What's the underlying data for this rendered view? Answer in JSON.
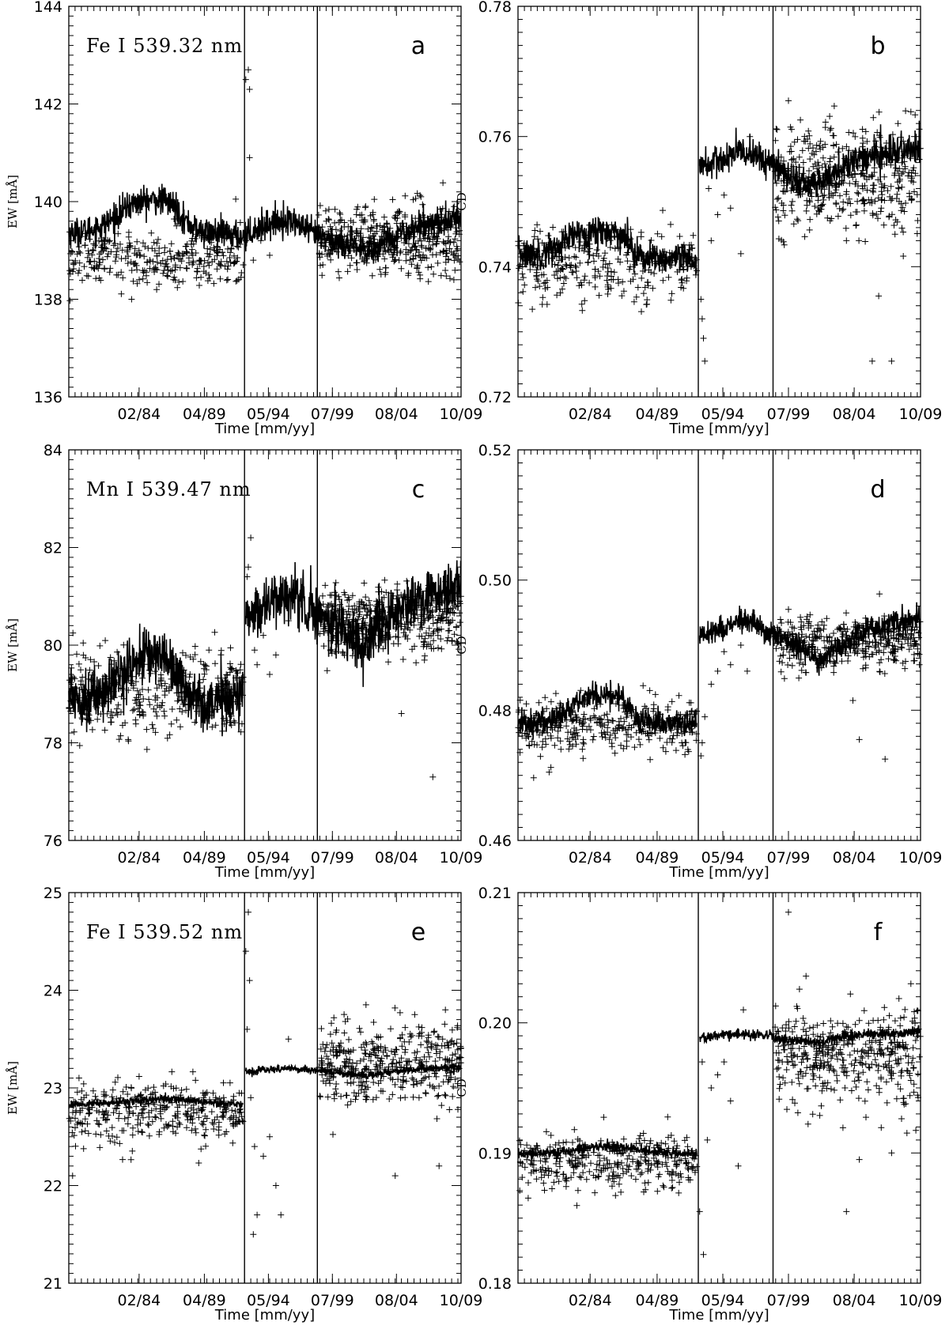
{
  "chart_data": [
    {
      "panel": "a",
      "type": "scatter",
      "title": "Fe I 539.32 nm",
      "letter": "a",
      "xlabel": "Time [mm/yy]",
      "ylabel": "EW [mÅ]",
      "xlim": [
        1978.5,
        2009.75
      ],
      "ylim": [
        136,
        144
      ],
      "x_tick_labels": [
        "02/84",
        "04/89",
        "05/94",
        "07/99",
        "08/04",
        "10/09"
      ],
      "x_ticks": [
        1984.1,
        1989.3,
        1994.4,
        1999.5,
        2004.6,
        2009.75
      ],
      "y_ticks": [
        136,
        138,
        140,
        142,
        144
      ],
      "y_tick_labels": [
        "136",
        "138",
        "140",
        "142",
        "144"
      ],
      "vlines": [
        1992.5,
        1998.3
      ],
      "model_curve": [
        [
          1978.5,
          139.35
        ],
        [
          1980,
          139.4
        ],
        [
          1981.5,
          139.55
        ],
        [
          1982.5,
          139.75
        ],
        [
          1983.5,
          139.95
        ],
        [
          1984.5,
          140.02
        ],
        [
          1986,
          140.03
        ],
        [
          1987,
          139.9
        ],
        [
          1987.8,
          139.6
        ],
        [
          1988.8,
          139.4
        ],
        [
          1990,
          139.35
        ],
        [
          1992.4,
          139.3
        ],
        [
          1992.6,
          139.3
        ],
        [
          1993.5,
          139.45
        ],
        [
          1994.5,
          139.55
        ],
        [
          1995.5,
          139.62
        ],
        [
          1996.5,
          139.58
        ],
        [
          1997.5,
          139.4
        ],
        [
          1998.3,
          139.3
        ],
        [
          1998.4,
          139.3
        ],
        [
          1999.5,
          139.2
        ],
        [
          2001,
          139.1
        ],
        [
          2002.2,
          138.95
        ],
        [
          2003,
          139.05
        ],
        [
          2004,
          139.25
        ],
        [
          2005.5,
          139.4
        ],
        [
          2007,
          139.55
        ],
        [
          2009.75,
          139.65
        ]
      ],
      "model_noise": 0.15,
      "scatter_clusters": [
        {
          "x": [
            1978.5,
            1992.4
          ],
          "y": [
            138.85,
            0.3
          ],
          "n": 320
        },
        {
          "x": [
            1998.4,
            2009.75
          ],
          "y": [
            139.2,
            0.35
          ],
          "n": 420
        }
      ],
      "scatter_points": [
        [
          1983.5,
          138.0
        ],
        [
          1985.5,
          138.2
        ],
        [
          1991.8,
          140.05
        ],
        [
          1992.6,
          142.5
        ],
        [
          1992.9,
          142.3
        ],
        [
          1992.8,
          142.7
        ],
        [
          1992.9,
          140.9
        ],
        [
          1993.8,
          139.2
        ],
        [
          1994.5,
          138.9
        ],
        [
          1995.5,
          139.5
        ],
        [
          1992.6,
          139.2
        ],
        [
          1993.2,
          138.8
        ],
        [
          2004.8,
          139.8
        ],
        [
          2009.2,
          139.9
        ]
      ]
    },
    {
      "panel": "b",
      "type": "scatter",
      "title": "",
      "letter": "b",
      "xlabel": "Time [mm/yy]",
      "ylabel": "CD",
      "xlim": [
        1978.5,
        2009.75
      ],
      "ylim": [
        0.72,
        0.78
      ],
      "x_tick_labels": [
        "02/84",
        "04/89",
        "05/94",
        "07/99",
        "08/04",
        "10/09"
      ],
      "x_ticks": [
        1984.1,
        1989.3,
        1994.4,
        1999.5,
        2004.6,
        2009.75
      ],
      "y_ticks": [
        0.72,
        0.74,
        0.76,
        0.78
      ],
      "y_tick_labels": [
        "0.72",
        "0.74",
        "0.76",
        "0.78"
      ],
      "vlines": [
        1992.5,
        1998.3
      ],
      "model_curve": [
        [
          1978.5,
          0.742
        ],
        [
          1980,
          0.742
        ],
        [
          1981.5,
          0.743
        ],
        [
          1983,
          0.745
        ],
        [
          1984.5,
          0.7455
        ],
        [
          1986,
          0.7455
        ],
        [
          1987,
          0.744
        ],
        [
          1988,
          0.7415
        ],
        [
          1989.5,
          0.741
        ],
        [
          1992.4,
          0.741
        ],
        [
          1992.6,
          0.7555
        ],
        [
          1994,
          0.756
        ],
        [
          1995.5,
          0.7575
        ],
        [
          1996.5,
          0.7575
        ],
        [
          1997.5,
          0.7565
        ],
        [
          1998.3,
          0.7555
        ],
        [
          1998.4,
          0.7555
        ],
        [
          1999.5,
          0.754
        ],
        [
          2001,
          0.7525
        ],
        [
          2002,
          0.753
        ],
        [
          2003.5,
          0.755
        ],
        [
          2005,
          0.7565
        ],
        [
          2007,
          0.7575
        ],
        [
          2009.75,
          0.758
        ]
      ],
      "model_noise": 0.0012,
      "scatter_clusters": [
        {
          "x": [
            1978.5,
            1992.4
          ],
          "y": [
            0.7405,
            0.003
          ],
          "n": 300
        },
        {
          "x": [
            1998.4,
            2009.75
          ],
          "y": [
            0.7535,
            0.004
          ],
          "n": 420
        }
      ],
      "scatter_points": [
        [
          1992.7,
          0.735
        ],
        [
          1992.8,
          0.732
        ],
        [
          1992.9,
          0.729
        ],
        [
          1993.0,
          0.7255
        ],
        [
          1993.5,
          0.744
        ],
        [
          1994,
          0.748
        ],
        [
          1994.5,
          0.751
        ],
        [
          1995,
          0.749
        ],
        [
          1995.8,
          0.742
        ],
        [
          1993.3,
          0.752
        ],
        [
          1996.5,
          0.76
        ],
        [
          1999.5,
          0.7655
        ],
        [
          2004,
          0.744
        ],
        [
          2006.5,
          0.7355
        ],
        [
          2006,
          0.7255
        ],
        [
          2007.5,
          0.7255
        ],
        [
          2008,
          0.762
        ]
      ]
    },
    {
      "panel": "c",
      "type": "scatter",
      "title": "Mn I 539.47 nm",
      "letter": "c",
      "xlabel": "Time [mm/yy]",
      "ylabel": "EW [mÅ]",
      "xlim": [
        1978.5,
        2009.75
      ],
      "ylim": [
        76,
        84
      ],
      "x_tick_labels": [
        "02/84",
        "04/89",
        "05/94",
        "07/99",
        "08/04",
        "10/09"
      ],
      "x_ticks": [
        1984.1,
        1989.3,
        1994.4,
        1999.5,
        2004.6,
        2009.75
      ],
      "y_ticks": [
        76,
        78,
        80,
        82,
        84
      ],
      "y_tick_labels": [
        "76",
        "78",
        "80",
        "82",
        "84"
      ],
      "vlines": [
        1992.5,
        1998.3
      ],
      "model_curve": [
        [
          1978.5,
          79.0
        ],
        [
          1980,
          78.9
        ],
        [
          1981.5,
          79.1
        ],
        [
          1983,
          79.5
        ],
        [
          1984.5,
          79.8
        ],
        [
          1986,
          79.8
        ],
        [
          1987,
          79.5
        ],
        [
          1988,
          79.0
        ],
        [
          1989.5,
          78.8
        ],
        [
          1992.4,
          79.0
        ],
        [
          1992.6,
          80.6
        ],
        [
          1994,
          80.8
        ],
        [
          1995.5,
          81.0
        ],
        [
          1996.5,
          81.0
        ],
        [
          1997.5,
          80.8
        ],
        [
          1998.3,
          80.65
        ],
        [
          1998.4,
          80.6
        ],
        [
          1999.5,
          80.5
        ],
        [
          2001,
          80.2
        ],
        [
          2002,
          79.95
        ],
        [
          2003,
          80.3
        ],
        [
          2004.5,
          80.65
        ],
        [
          2006,
          80.9
        ],
        [
          2007.5,
          81.05
        ],
        [
          2009.75,
          81.1
        ]
      ],
      "model_noise": 0.28,
      "scatter_clusters": [
        {
          "x": [
            1978.5,
            1992.4
          ],
          "y": [
            79.0,
            0.45
          ],
          "n": 340
        },
        {
          "x": [
            1998.4,
            2009.75
          ],
          "y": [
            80.5,
            0.35
          ],
          "n": 380
        }
      ],
      "scatter_points": [
        [
          1978.7,
          78.0
        ],
        [
          1992.7,
          81.4
        ],
        [
          1992.8,
          81.6
        ],
        [
          1993.0,
          82.2
        ],
        [
          1993.3,
          79.9
        ],
        [
          1993.5,
          79.6
        ],
        [
          1994,
          80.2
        ],
        [
          1994.5,
          79.4
        ],
        [
          1995,
          79.8
        ],
        [
          1996,
          80.5
        ],
        [
          2003,
          80.9
        ],
        [
          2005,
          78.6
        ],
        [
          2007.5,
          77.3
        ],
        [
          2008.5,
          81.3
        ]
      ]
    },
    {
      "panel": "d",
      "type": "scatter",
      "title": "",
      "letter": "d",
      "xlabel": "Time [mm/yy]",
      "ylabel": "CD",
      "xlim": [
        1978.5,
        2009.75
      ],
      "ylim": [
        0.46,
        0.52
      ],
      "x_tick_labels": [
        "02/84",
        "04/89",
        "05/94",
        "07/99",
        "08/04",
        "10/09"
      ],
      "x_ticks": [
        1984.1,
        1989.3,
        1994.4,
        1999.5,
        2004.6,
        2009.75
      ],
      "y_ticks": [
        0.46,
        0.48,
        0.5,
        0.52
      ],
      "y_tick_labels": [
        "0.46",
        "0.48",
        "0.50",
        "0.52"
      ],
      "vlines": [
        1992.5,
        1998.3
      ],
      "model_curve": [
        [
          1978.5,
          0.478
        ],
        [
          1980,
          0.478
        ],
        [
          1981.5,
          0.479
        ],
        [
          1983,
          0.481
        ],
        [
          1984.5,
          0.4825
        ],
        [
          1986,
          0.4825
        ],
        [
          1987,
          0.481
        ],
        [
          1988,
          0.4785
        ],
        [
          1989.5,
          0.478
        ],
        [
          1992.4,
          0.478
        ],
        [
          1992.6,
          0.4915
        ],
        [
          1994,
          0.4925
        ],
        [
          1995.5,
          0.4935
        ],
        [
          1996.5,
          0.4935
        ],
        [
          1997.5,
          0.4925
        ],
        [
          1998.3,
          0.4915
        ],
        [
          1998.4,
          0.491
        ],
        [
          1999.5,
          0.4905
        ],
        [
          2001,
          0.489
        ],
        [
          2002,
          0.4875
        ],
        [
          2003,
          0.489
        ],
        [
          2004.5,
          0.491
        ],
        [
          2006,
          0.4925
        ],
        [
          2007.5,
          0.4935
        ],
        [
          2009.75,
          0.494
        ]
      ],
      "model_noise": 0.001,
      "scatter_clusters": [
        {
          "x": [
            1978.5,
            1992.4
          ],
          "y": [
            0.4775,
            0.0022
          ],
          "n": 330
        },
        {
          "x": [
            1998.4,
            2009.75
          ],
          "y": [
            0.4905,
            0.002
          ],
          "n": 380
        }
      ],
      "scatter_points": [
        [
          1992.7,
          0.473
        ],
        [
          1992.8,
          0.475
        ],
        [
          1993,
          0.479
        ],
        [
          1993.5,
          0.484
        ],
        [
          1994,
          0.486
        ],
        [
          1994.5,
          0.489
        ],
        [
          1995,
          0.487
        ],
        [
          1995.8,
          0.49
        ],
        [
          1996.3,
          0.486
        ],
        [
          1999.5,
          0.4955
        ],
        [
          2004.5,
          0.4815
        ],
        [
          2005,
          0.4755
        ],
        [
          2007,
          0.4725
        ],
        [
          2009,
          0.494
        ]
      ]
    },
    {
      "panel": "e",
      "type": "scatter",
      "title": "Fe I 539.52 nm",
      "letter": "e",
      "xlabel": "Time [mm/yy]",
      "ylabel": "EW [mÅ]",
      "xlim": [
        1978.5,
        2009.75
      ],
      "ylim": [
        21,
        25
      ],
      "x_tick_labels": [
        "02/84",
        "04/89",
        "05/94",
        "07/99",
        "08/04",
        "10/09"
      ],
      "x_ticks": [
        1984.1,
        1989.3,
        1994.4,
        1999.5,
        2004.6,
        2009.75
      ],
      "y_ticks": [
        21,
        22,
        23,
        24,
        25
      ],
      "y_tick_labels": [
        "21",
        "22",
        "23",
        "24",
        "25"
      ],
      "vlines": [
        1992.5,
        1998.3
      ],
      "model_curve": [
        [
          1978.5,
          22.83
        ],
        [
          1981,
          22.84
        ],
        [
          1983,
          22.86
        ],
        [
          1985,
          22.88
        ],
        [
          1987,
          22.89
        ],
        [
          1989,
          22.86
        ],
        [
          1992.4,
          22.83
        ],
        [
          1992.6,
          23.17
        ],
        [
          1994,
          23.18
        ],
        [
          1996,
          23.2
        ],
        [
          1998.3,
          23.18
        ],
        [
          1998.4,
          23.18
        ],
        [
          1999.5,
          23.16
        ],
        [
          2001,
          23.14
        ],
        [
          2002,
          23.12
        ],
        [
          2004,
          23.16
        ],
        [
          2006,
          23.19
        ],
        [
          2009.75,
          23.22
        ]
      ],
      "model_noise": 0.02,
      "scatter_clusters": [
        {
          "x": [
            1978.5,
            1992.4
          ],
          "y": [
            22.75,
            0.16
          ],
          "n": 320
        },
        {
          "x": [
            1998.4,
            2009.75
          ],
          "y": [
            23.25,
            0.2
          ],
          "n": 400
        }
      ],
      "scatter_points": [
        [
          1978.8,
          22.1
        ],
        [
          1992.6,
          24.4
        ],
        [
          1992.8,
          24.8
        ],
        [
          1992.9,
          24.1
        ],
        [
          1992.7,
          23.6
        ],
        [
          1993,
          22.9
        ],
        [
          1993.3,
          22.4
        ],
        [
          1993.5,
          21.7
        ],
        [
          1993.2,
          21.5
        ],
        [
          1994,
          22.3
        ],
        [
          1994.5,
          22.5
        ],
        [
          1995,
          22.0
        ],
        [
          1995.4,
          21.7
        ],
        [
          1996,
          23.5
        ],
        [
          2004.5,
          22.1
        ],
        [
          2008,
          22.2
        ],
        [
          2008.5,
          23.8
        ]
      ]
    },
    {
      "panel": "f",
      "type": "scatter",
      "title": "",
      "letter": "f",
      "xlabel": "Time [mm/yy]",
      "ylabel": "CD",
      "xlim": [
        1978.5,
        2009.75
      ],
      "ylim": [
        0.18,
        0.21
      ],
      "x_tick_labels": [
        "02/84",
        "04/89",
        "05/94",
        "07/99",
        "08/04",
        "10/09"
      ],
      "x_ticks": [
        1984.1,
        1989.3,
        1994.4,
        1999.5,
        2004.6,
        2009.75
      ],
      "y_ticks": [
        0.18,
        0.19,
        0.2,
        0.21
      ],
      "y_tick_labels": [
        "0.18",
        "0.19",
        "0.20",
        "0.21"
      ],
      "vlines": [
        1992.5,
        1998.3
      ],
      "model_curve": [
        [
          1978.5,
          0.1899
        ],
        [
          1981,
          0.19
        ],
        [
          1983,
          0.1903
        ],
        [
          1985,
          0.1905
        ],
        [
          1987,
          0.1904
        ],
        [
          1989,
          0.1901
        ],
        [
          1992.4,
          0.1899
        ],
        [
          1992.6,
          0.1989
        ],
        [
          1994,
          0.199
        ],
        [
          1996,
          0.1991
        ],
        [
          1998.3,
          0.199
        ],
        [
          1998.4,
          0.1988
        ],
        [
          1999.5,
          0.1987
        ],
        [
          2001,
          0.1985
        ],
        [
          2002,
          0.1985
        ],
        [
          2004,
          0.199
        ],
        [
          2006,
          0.1991
        ],
        [
          2009.75,
          0.1993
        ]
      ],
      "model_noise": 0.0002,
      "scatter_clusters": [
        {
          "x": [
            1978.5,
            1992.4
          ],
          "y": [
            0.1893,
            0.0011
          ],
          "n": 330
        },
        {
          "x": [
            1998.4,
            2009.75
          ],
          "y": [
            0.1975,
            0.0018
          ],
          "n": 400
        }
      ],
      "scatter_points": [
        [
          1992.6,
          0.1855
        ],
        [
          1992.9,
          0.1822
        ],
        [
          1993.2,
          0.191
        ],
        [
          1993.5,
          0.195
        ],
        [
          1994,
          0.196
        ],
        [
          1994.5,
          0.197
        ],
        [
          1995,
          0.194
        ],
        [
          1995.6,
          0.189
        ],
        [
          1996,
          0.201
        ],
        [
          1992.8,
          0.197
        ],
        [
          1999.5,
          0.2085
        ],
        [
          2004,
          0.1855
        ],
        [
          2005,
          0.1895
        ],
        [
          2007.5,
          0.19
        ],
        [
          2009,
          0.203
        ]
      ]
    }
  ]
}
